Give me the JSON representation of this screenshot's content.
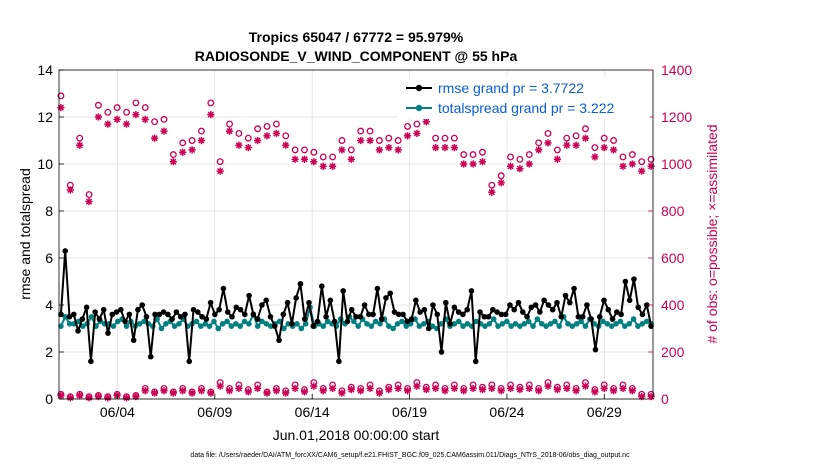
{
  "chart_data": {
    "type": "line",
    "title_line1": "Tropics 65047 / 67772 = 95.979%",
    "title_line2": "RADIOSONDE_V_WIND_COMPONENT @ 55 hPa",
    "xlabel": "Jun.01,2018 00:00:00 start",
    "ylabel_left": "rmse and totalspread",
    "ylabel_right": "# of obs: o=possible; ×=assimilated",
    "ylim_left": [
      0,
      14
    ],
    "ylim_right": [
      0,
      1400
    ],
    "xlim": [
      0,
      30.5
    ],
    "left_ticks": [
      "0",
      "2",
      "4",
      "6",
      "8",
      "10",
      "12",
      "14"
    ],
    "right_ticks": [
      "0",
      "200",
      "400",
      "600",
      "800",
      "1000",
      "1200",
      "1400"
    ],
    "x_tick_labels": [
      "06/04",
      "06/09",
      "06/14",
      "06/19",
      "06/24",
      "06/29"
    ],
    "x_tick_values": [
      3,
      8,
      13,
      18,
      23,
      28
    ],
    "footer": "data file: /Users/raeder/DAI/ATM_forcXX/CAM6_setup/f.e21.FHIST_BGC.f09_025.CAM6assim.011/Diags_NTrS_2018-06/obs_diag_output.nc",
    "colors": {
      "rmse": "#000000",
      "spread": "#008080",
      "obs": "#cc0055",
      "legend_text": "#0a5fd6"
    },
    "legend": [
      {
        "name": "rmse grand pr = 3.7722"
      },
      {
        "name": "totalspread grand pr = 3.222"
      }
    ],
    "series": [
      {
        "name": "rmse",
        "axis": "left",
        "values": [
          3.6,
          6.3,
          3.5,
          3.6,
          2.9,
          3.4,
          3.9,
          1.6,
          3.7,
          3.4,
          3.8,
          2.8,
          3.6,
          3.7,
          3.8,
          3.3,
          3.6,
          2.5,
          3.8,
          4.0,
          3.5,
          1.8,
          3.6,
          3.6,
          3.7,
          3.6,
          3.4,
          3.7,
          3.5,
          3.6,
          1.6,
          3.8,
          3.7,
          3.5,
          3.4,
          4.1,
          3.6,
          3.8,
          4.7,
          3.7,
          3.5,
          3.9,
          3.8,
          3.6,
          4.4,
          3.6,
          3.4,
          4.0,
          4.2,
          3.5,
          3.1,
          2.5,
          3.6,
          4.1,
          3.2,
          4.3,
          4.9,
          3.4,
          4.1,
          3.1,
          3.3,
          4.8,
          3.5,
          4.2,
          3.3,
          1.6,
          4.6,
          3.3,
          3.8,
          3.5,
          3.5,
          4.0,
          3.6,
          3.6,
          4.7,
          3.4,
          4.3,
          4.5,
          3.7,
          3.6,
          3.6,
          3.3,
          3.4,
          4.2,
          3.7,
          3.8,
          3.0,
          4.0,
          3.6,
          2.0,
          4.1,
          3.2,
          3.9,
          3.7,
          3.6,
          3.8,
          4.6,
          1.6,
          3.7,
          3.5,
          3.5,
          3.8,
          3.7,
          3.6,
          3.6,
          4.0,
          3.8,
          4.1,
          3.7,
          3.5,
          3.9,
          4.0,
          3.7,
          4.2,
          4.0,
          3.8,
          4.1,
          3.5,
          4.4,
          4.1,
          4.7,
          3.5,
          3.5,
          4.0,
          3.4,
          2.1,
          3.5,
          4.2,
          3.8,
          3.4,
          3.7,
          3.6,
          5.0,
          4.2,
          5.1,
          3.9,
          3.6,
          4.0,
          3.1
        ]
      },
      {
        "name": "totalspread",
        "axis": "left",
        "values": [
          3.1,
          3.5,
          3.2,
          3.2,
          3.3,
          3.1,
          3.2,
          3.5,
          3.1,
          3.3,
          3.2,
          3.2,
          3.1,
          3.3,
          3.4,
          3.1,
          3.3,
          3.1,
          3.2,
          3.3,
          3.2,
          3.1,
          3.4,
          3.0,
          3.2,
          3.3,
          3.1,
          3.2,
          3.4,
          3.1,
          3.2,
          3.3,
          3.1,
          3.2,
          3.1,
          3.3,
          3.0,
          3.2,
          3.3,
          3.1,
          3.2,
          3.1,
          3.3,
          3.2,
          3.6,
          3.1,
          3.3,
          3.2,
          3.1,
          3.2,
          3.3,
          3.0,
          3.2,
          3.1,
          3.2,
          3.0,
          3.2,
          3.9,
          3.1,
          3.2,
          3.1,
          3.3,
          3.2,
          3.1,
          3.4,
          3.2,
          3.5,
          3.3,
          3.1,
          3.4,
          3.2,
          3.1,
          3.3,
          3.2,
          3.4,
          3.1,
          3.0,
          3.2,
          3.3,
          3.1,
          3.2,
          3.4,
          3.1,
          3.2,
          3.3,
          3.1,
          3.0,
          3.2,
          3.4,
          3.1,
          3.2,
          3.3,
          3.1,
          3.2,
          3.1,
          3.3,
          3.2,
          3.1,
          3.2,
          3.4,
          3.1,
          3.2,
          3.3,
          3.1,
          3.2,
          3.1,
          3.2,
          3.3,
          3.1,
          3.4,
          3.2,
          3.1,
          3.2,
          3.3,
          3.1,
          3.5,
          3.2,
          3.1,
          3.2,
          3.3,
          3.1,
          3.4,
          3.2,
          3.1,
          3.3,
          3.2,
          3.1,
          3.2,
          3.3,
          3.1,
          3.2,
          3.4,
          3.1,
          3.2,
          3.3,
          3.2
        ]
      },
      {
        "name": "possible",
        "axis": "right",
        "marker": "circle",
        "values": [
          1290,
          910,
          1110,
          870,
          1250,
          1220,
          1240,
          1220,
          1260,
          1240,
          1180,
          1190,
          1040,
          1090,
          1100,
          1140,
          1260,
          1010,
          1170,
          1130,
          1110,
          1150,
          1160,
          1170,
          1120,
          1060,
          1060,
          1050,
          1030,
          1030,
          1100,
          1060,
          1140,
          1140,
          1100,
          1110,
          1100,
          1160,
          1170,
          1220,
          1110,
          1110,
          1110,
          1040,
          1040,
          1050,
          910,
          950,
          1030,
          1020,
          1040,
          1090,
          1130,
          1060,
          1110,
          1120,
          1150,
          1070,
          1110,
          1100,
          1030,
          1040,
          1010,
          1020
        ]
      },
      {
        "name": "assimilated",
        "axis": "right",
        "marker": "star",
        "values": [
          1240,
          890,
          1080,
          840,
          1200,
          1170,
          1190,
          1170,
          1210,
          1190,
          1110,
          1140,
          1010,
          1050,
          1060,
          1100,
          1210,
          970,
          1140,
          1080,
          1070,
          1100,
          1120,
          1130,
          1080,
          1020,
          1020,
          1010,
          990,
          990,
          1060,
          1020,
          1100,
          1100,
          1060,
          1070,
          1060,
          1120,
          1130,
          1180,
          1070,
          1070,
          1070,
          1000,
          1000,
          1010,
          880,
          920,
          990,
          980,
          1000,
          1060,
          1090,
          1020,
          1080,
          1080,
          1110,
          1030,
          1070,
          1060,
          990,
          1000,
          970,
          990
        ]
      },
      {
        "name": "possible_low",
        "axis": "right",
        "marker": "circle",
        "values": [
          20,
          10,
          20,
          10,
          15,
          10,
          20,
          10,
          15,
          45,
          30,
          45,
          30,
          45,
          30,
          45,
          30,
          70,
          45,
          60,
          40,
          60,
          30,
          45,
          35,
          60,
          40,
          70,
          45,
          60,
          35,
          50,
          45,
          60,
          35,
          50,
          60,
          45,
          70,
          50,
          60,
          45,
          60,
          45,
          60,
          50,
          60,
          45,
          60,
          50,
          60,
          45,
          70,
          50,
          60,
          45,
          70,
          40,
          60,
          45,
          60,
          45,
          20,
          20
        ]
      },
      {
        "name": "assimilated_low",
        "axis": "right",
        "marker": "star",
        "values": [
          15,
          5,
          15,
          5,
          10,
          5,
          15,
          5,
          10,
          35,
          25,
          35,
          25,
          35,
          25,
          35,
          25,
          55,
          35,
          45,
          30,
          45,
          25,
          35,
          25,
          45,
          30,
          55,
          35,
          45,
          25,
          40,
          35,
          45,
          25,
          40,
          45,
          35,
          55,
          40,
          45,
          35,
          45,
          35,
          45,
          40,
          45,
          35,
          45,
          40,
          45,
          35,
          55,
          40,
          45,
          35,
          55,
          30,
          45,
          35,
          45,
          35,
          10,
          10
        ]
      }
    ]
  }
}
